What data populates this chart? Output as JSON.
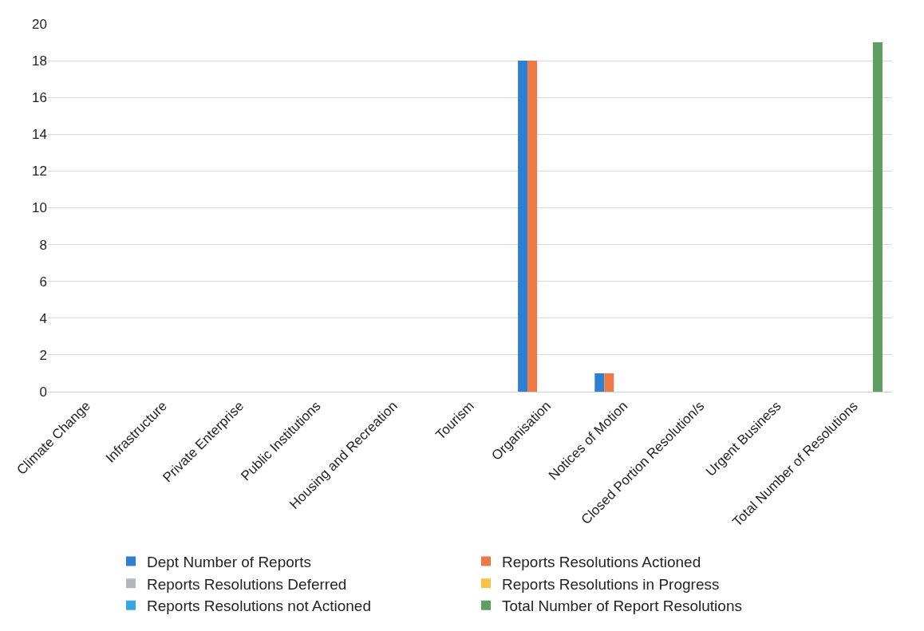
{
  "chart_data": {
    "type": "bar",
    "categories": [
      "Climate Change",
      "Infrastructure",
      "Private Enterprise",
      "Public Institutions",
      "Housing and Recreation",
      "Tourism",
      "Organisation",
      "Notices of Motion",
      "Closed Portion Resolution/s",
      "Urgent Business",
      "Total Number of Resolutions"
    ],
    "series": [
      {
        "name": "Dept Number of Reports",
        "color": "#2e7fcf",
        "values": [
          0,
          0,
          0,
          0,
          0,
          0,
          18,
          1,
          0,
          0,
          0
        ]
      },
      {
        "name": "Reports Resolutions Actioned",
        "color": "#ec7a48",
        "values": [
          0,
          0,
          0,
          0,
          0,
          0,
          18,
          1,
          0,
          0,
          0
        ]
      },
      {
        "name": "Reports Resolutions Deferred",
        "color": "#b4b6c0",
        "values": [
          0,
          0,
          0,
          0,
          0,
          0,
          0,
          0,
          0,
          0,
          0
        ]
      },
      {
        "name": "Reports Resolutions in Progress",
        "color": "#f8c24a",
        "values": [
          0,
          0,
          0,
          0,
          0,
          0,
          0,
          0,
          0,
          0,
          0
        ]
      },
      {
        "name": "Reports Resolutions not Actioned",
        "color": "#3aa6e0",
        "values": [
          0,
          0,
          0,
          0,
          0,
          0,
          0,
          0,
          0,
          0,
          0
        ]
      },
      {
        "name": "Total Number of Report Resolutions",
        "color": "#5f9e62",
        "values": [
          0,
          0,
          0,
          0,
          0,
          0,
          0,
          0,
          0,
          0,
          19
        ]
      }
    ],
    "ylim": [
      0,
      20
    ],
    "yticks": [
      0,
      2,
      4,
      6,
      8,
      10,
      12,
      14,
      16,
      18,
      20
    ],
    "grid": "y",
    "legend": "bottom"
  }
}
